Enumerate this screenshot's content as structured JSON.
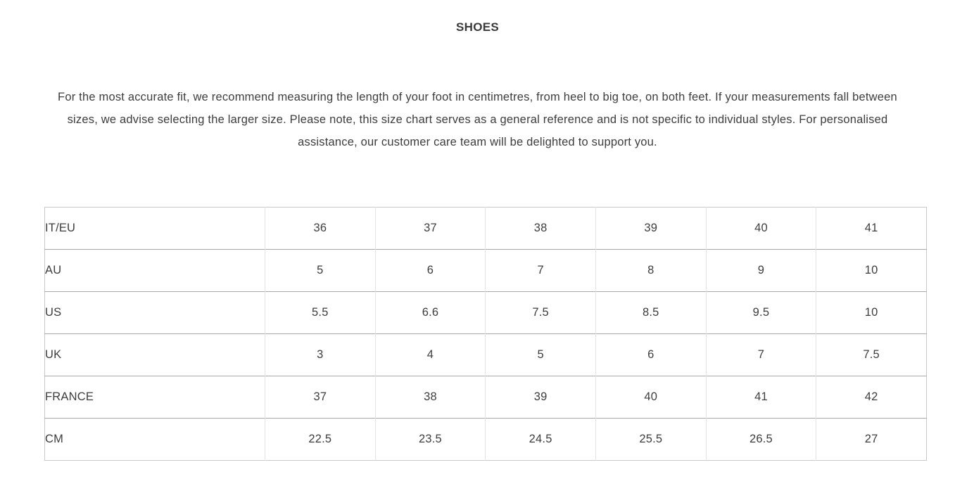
{
  "page": {
    "title": "SHOES",
    "intro": "For the most accurate fit, we recommend measuring the length of your foot in centimetres, from heel to big toe, on both feet. If your measurements fall between sizes, we advise selecting the larger size. Please note, this size chart serves as a general reference and is not specific to individual styles. For personalised assistance, our customer care team will be delighted to support you."
  },
  "table": {
    "rows": [
      {
        "label": "IT/EU",
        "values": [
          "36",
          "37",
          "38",
          "39",
          "40",
          "41"
        ]
      },
      {
        "label": "AU",
        "values": [
          "5",
          "6",
          "7",
          "8",
          "9",
          "10"
        ]
      },
      {
        "label": "US",
        "values": [
          "5.5",
          "6.6",
          "7.5",
          "8.5",
          "9.5",
          "10"
        ]
      },
      {
        "label": "UK",
        "values": [
          "3",
          "4",
          "5",
          "6",
          "7",
          "7.5"
        ]
      },
      {
        "label": "FRANCE",
        "values": [
          "37",
          "38",
          "39",
          "40",
          "41",
          "42"
        ]
      },
      {
        "label": "CM",
        "values": [
          "22.5",
          "23.5",
          "24.5",
          "25.5",
          "26.5",
          "27"
        ]
      }
    ]
  },
  "colors": {
    "text": "#3d3d3d",
    "table_border_outer": "#c9c9c9",
    "table_border_row": "#a8a8a8",
    "table_border_column": "#e3e3e3",
    "background": "#ffffff"
  }
}
